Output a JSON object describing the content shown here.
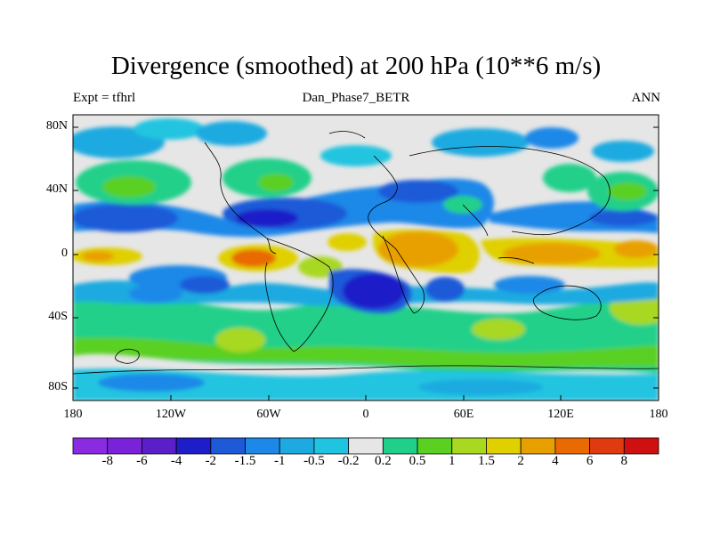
{
  "title": "Divergence (smoothed) at 200 hPa (10**6 m/s)",
  "left_label": "Expt = tfhrl",
  "center_label": "Dan_Phase7_BETR",
  "right_label": "ANN",
  "y_ticks": [
    "80N",
    "40N",
    "0",
    "40S",
    "80S"
  ],
  "x_ticks": [
    "180",
    "120W",
    "60W",
    "0",
    "60E",
    "120E",
    "180"
  ],
  "colorbar": {
    "labels": [
      "-8",
      "-6",
      "-4",
      "-2",
      "-1.5",
      "-1",
      "-0.5",
      "-0.2",
      "0.2",
      "0.5",
      "1",
      "1.5",
      "2",
      "4",
      "6",
      "8"
    ],
    "colors": [
      "#8a2be2",
      "#7a22d8",
      "#5a1fc8",
      "#1e1ec8",
      "#1e5ad8",
      "#1e88e8",
      "#1eaae0",
      "#20c4e0",
      "#e6e6e6",
      "#20d08a",
      "#5ad020",
      "#a8d820",
      "#e0d000",
      "#e8a000",
      "#e86a00",
      "#e03a10",
      "#d01010"
    ]
  },
  "colors": {
    "neutral": "#e6e6e6",
    "deep_blue": "#1e1ec8",
    "blue": "#1e5ad8",
    "mid_blue": "#1e88e8",
    "light_blue": "#1eaae0",
    "cyan": "#20c4e0",
    "green": "#20d08a",
    "lime": "#5ad020",
    "yellow_green": "#a8d820",
    "yellow": "#e0d000",
    "orange": "#e8a000",
    "dark_orange": "#e86a00",
    "red": "#e03a10"
  }
}
